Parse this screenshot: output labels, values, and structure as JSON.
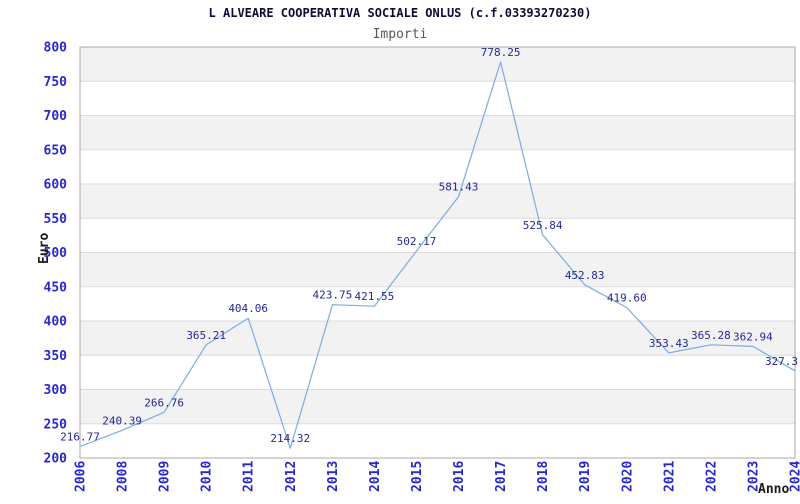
{
  "chart_data": {
    "type": "line",
    "title": "L ALVEARE COOPERATIVA SOCIALE ONLUS (c.f.03393270230)",
    "subtitle": "Importi",
    "xlabel": "Anno",
    "ylabel": "Euro",
    "categories": [
      "2006",
      "2008",
      "2009",
      "2010",
      "2011",
      "2012",
      "2013",
      "2014",
      "2015",
      "2016",
      "2017",
      "2018",
      "2019",
      "2020",
      "2021",
      "2022",
      "2023",
      "2024"
    ],
    "values": [
      216.77,
      240.39,
      266.76,
      365.21,
      404.06,
      214.32,
      423.75,
      421.55,
      502.17,
      581.43,
      778.25,
      525.84,
      452.83,
      419.6,
      353.43,
      365.28,
      362.94,
      327.3
    ],
    "value_labels": [
      "216.77",
      "240.39",
      "266.76",
      "365.21",
      "404.06",
      "214.32",
      "423.75",
      "421.55",
      "502.17",
      "581.43",
      "778.25",
      "525.84",
      "452.83",
      "419.60",
      "353.43",
      "365.28",
      "362.94",
      "327.3"
    ],
    "ylim": [
      200,
      800
    ],
    "ytick_step": 50,
    "ytick_labels": [
      "800",
      "750",
      "700",
      "650",
      "600",
      "550",
      "500",
      "450",
      "400",
      "350",
      "300",
      "250",
      "200"
    ],
    "grid": "horizontal-bands-alternating",
    "legend": "none",
    "colors": {
      "background": "#ffffff",
      "band": "#f2f2f2",
      "gridline": "#dcdcdc",
      "plot_border": "#a8a8a8",
      "line": "#79ade3",
      "tick_label": "#2727cf",
      "data_label": "#26269a",
      "title": "#0d0d33",
      "subtitle": "#595959",
      "axis_title": "#1a1a1a"
    }
  }
}
